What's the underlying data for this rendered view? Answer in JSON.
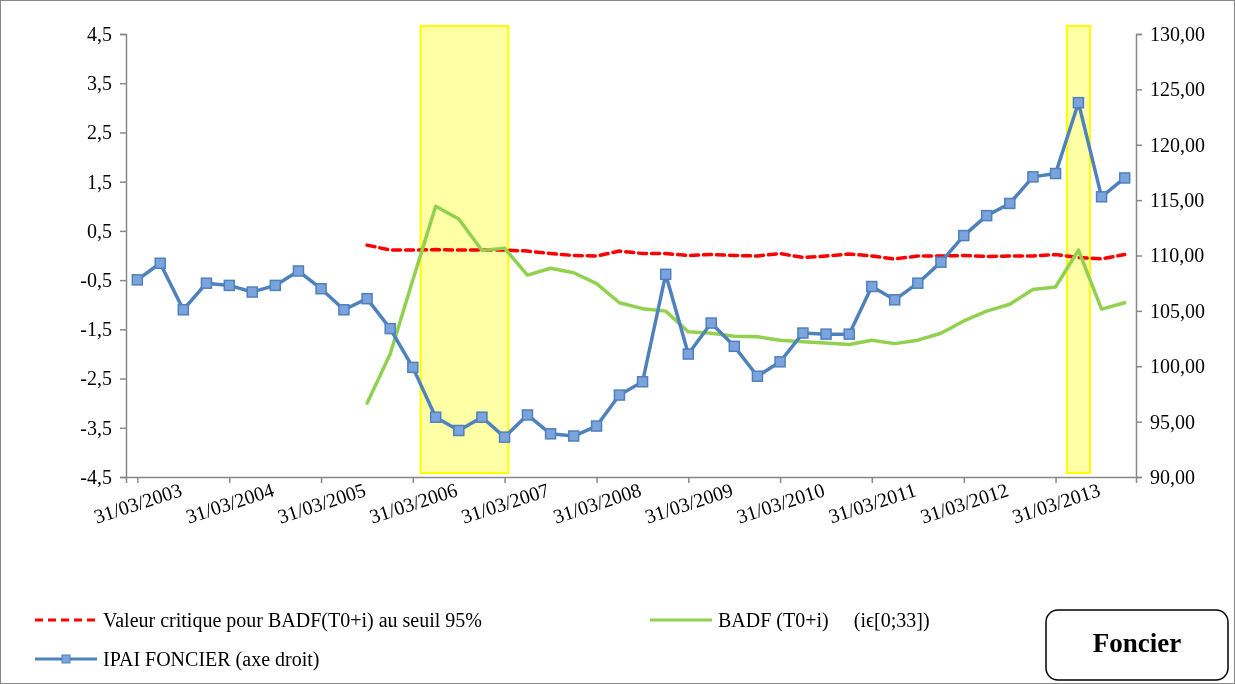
{
  "chart_data": {
    "type": "line",
    "x": [
      "2003-03-31",
      "2003-06-30",
      "2003-09-30",
      "2003-12-31",
      "2004-03-31",
      "2004-06-30",
      "2004-09-30",
      "2004-12-31",
      "2005-03-31",
      "2005-06-30",
      "2005-09-30",
      "2005-12-31",
      "2006-03-31",
      "2006-06-30",
      "2006-09-30",
      "2006-12-31",
      "2007-03-31",
      "2007-06-30",
      "2007-09-30",
      "2007-12-31",
      "2008-03-31",
      "2008-06-30",
      "2008-09-30",
      "2008-12-31",
      "2009-03-31",
      "2009-06-30",
      "2009-09-30",
      "2009-12-31",
      "2010-03-31",
      "2010-06-30",
      "2010-09-30",
      "2010-12-31",
      "2011-03-31",
      "2011-06-30",
      "2011-09-30",
      "2011-12-31",
      "2012-03-31",
      "2012-06-30",
      "2012-09-30",
      "2012-12-31",
      "2013-03-31",
      "2013-06-30",
      "2013-09-30",
      "2013-12-31"
    ],
    "xlim": [
      "2003-02-14",
      "2014-02-14"
    ],
    "xticks": [
      {
        "value": "2003-03-31",
        "label": "31/03/2003"
      },
      {
        "value": "2004-03-31",
        "label": "31/03/2004"
      },
      {
        "value": "2005-03-31",
        "label": "31/03/2005"
      },
      {
        "value": "2006-03-31",
        "label": "31/03/2006"
      },
      {
        "value": "2007-03-31",
        "label": "31/03/2007"
      },
      {
        "value": "2008-03-31",
        "label": "31/03/2008"
      },
      {
        "value": "2009-03-31",
        "label": "31/03/2009"
      },
      {
        "value": "2010-03-31",
        "label": "31/03/2010"
      },
      {
        "value": "2011-03-31",
        "label": "31/03/2011"
      },
      {
        "value": "2012-03-31",
        "label": "31/03/2012"
      },
      {
        "value": "2013-03-31",
        "label": "31/03/2013"
      }
    ],
    "ylim": [
      -4.5,
      4.5
    ],
    "yticks": [
      {
        "value": -4.5,
        "label": "-4,5"
      },
      {
        "value": -3.5,
        "label": "-3,5"
      },
      {
        "value": -2.5,
        "label": "-2,5"
      },
      {
        "value": -1.5,
        "label": "-1,5"
      },
      {
        "value": -0.5,
        "label": "-0,5"
      },
      {
        "value": 0.5,
        "label": "0,5"
      },
      {
        "value": 1.5,
        "label": "1,5"
      },
      {
        "value": 2.5,
        "label": "2,5"
      },
      {
        "value": 3.5,
        "label": "3,5"
      },
      {
        "value": 4.5,
        "label": "4,5"
      }
    ],
    "y2lim": [
      90,
      130
    ],
    "y2ticks": [
      {
        "value": 90,
        "label": "90,00"
      },
      {
        "value": 95,
        "label": "95,00"
      },
      {
        "value": 100,
        "label": "100,00"
      },
      {
        "value": 105,
        "label": "105,00"
      },
      {
        "value": 110,
        "label": "110,00"
      },
      {
        "value": 115,
        "label": "115,00"
      },
      {
        "value": 120,
        "label": "120,00"
      },
      {
        "value": 125,
        "label": "125,00"
      },
      {
        "value": 130,
        "label": "130,00"
      }
    ],
    "series": [
      {
        "name": "Valeur critique pour BADF(T0+i) au seuil 95%",
        "color": "#ff0000",
        "line_style": "dashed",
        "marker": "none",
        "values": [
          null,
          null,
          null,
          null,
          null,
          null,
          null,
          null,
          null,
          null,
          0.21,
          0.11,
          0.11,
          0.12,
          0.11,
          0.11,
          0.11,
          0.09,
          0.04,
          0.0,
          -0.01,
          0.09,
          0.04,
          0.04,
          0.0,
          0.02,
          0.0,
          -0.01,
          0.04,
          -0.04,
          -0.01,
          0.03,
          -0.01,
          -0.07,
          -0.01,
          -0.01,
          0.0,
          -0.02,
          -0.01,
          -0.01,
          0.02,
          -0.04,
          -0.07,
          0.02
        ]
      },
      {
        "name": "BADF (T0+i)     (iϵ[0;33])",
        "color": "#92d050",
        "line_style": "solid",
        "marker": "none",
        "values": [
          null,
          null,
          null,
          null,
          null,
          null,
          null,
          null,
          null,
          null,
          -3.0,
          -2.0,
          -0.5,
          1.0,
          0.74,
          0.1,
          0.15,
          -0.4,
          -0.26,
          -0.35,
          -0.57,
          -0.96,
          -1.08,
          -1.13,
          -1.55,
          -1.58,
          -1.64,
          -1.65,
          -1.72,
          -1.75,
          -1.78,
          -1.81,
          -1.72,
          -1.79,
          -1.72,
          -1.58,
          -1.33,
          -1.13,
          -0.99,
          -0.69,
          -0.64,
          0.11,
          -1.09,
          -0.96
        ]
      },
      {
        "name": "IPAI FONCIER (axe droit)",
        "color": "#4f81bd",
        "axis": "y2",
        "line_style": "solid",
        "marker": "square",
        "values": [
          107.8,
          109.3,
          105.1,
          107.5,
          107.3,
          106.7,
          107.3,
          108.6,
          107.0,
          105.1,
          106.1,
          103.4,
          99.9,
          95.4,
          94.2,
          95.4,
          93.6,
          95.6,
          93.9,
          93.7,
          94.6,
          97.4,
          98.6,
          108.3,
          101.1,
          103.9,
          101.8,
          99.1,
          100.4,
          103.0,
          102.9,
          102.9,
          107.2,
          106.0,
          107.5,
          109.4,
          111.8,
          113.6,
          114.7,
          117.1,
          117.4,
          123.8,
          115.3,
          117.0
        ]
      }
    ],
    "bands": [
      {
        "axis": "x",
        "from": "2006-05-01",
        "to": "2007-04-15",
        "color": "#ffff00"
      },
      {
        "axis": "x",
        "from": "2013-05-15",
        "to": "2013-08-15",
        "color": "#ffff00"
      }
    ],
    "annotations": [
      "Foncier"
    ],
    "legend": "bottom",
    "grid": false
  }
}
